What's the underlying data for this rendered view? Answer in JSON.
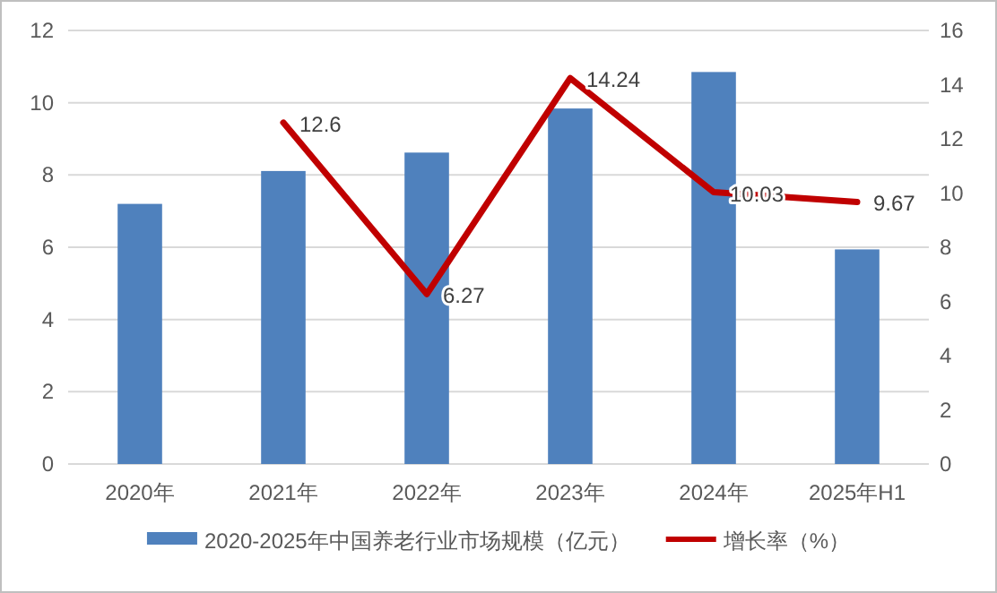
{
  "chart_data": {
    "type": "bar",
    "categories": [
      "2020年",
      "2021年",
      "2022年",
      "2023年",
      "2024年",
      "2025年H1"
    ],
    "series": [
      {
        "name": "2020-2025年中国养老行业市场规模（亿元）",
        "color": "#4f81bd",
        "values": [
          7.2,
          8.11,
          8.62,
          9.84,
          10.85,
          5.94
        ]
      },
      {
        "name": "增长率（%）",
        "type": "line",
        "axis": "y2",
        "color": "#c00000",
        "values": [
          null,
          12.6,
          6.27,
          14.24,
          10.03,
          9.67
        ],
        "value_labels": [
          null,
          "12.6",
          "6.27",
          "14.24",
          "10.03",
          "9.67"
        ]
      }
    ],
    "ylim": [
      0,
      12
    ],
    "yticks": [
      0,
      2,
      4,
      6,
      8,
      10,
      12
    ],
    "y2lim": [
      0,
      16
    ],
    "y2ticks": [
      0,
      2,
      4,
      6,
      8,
      10,
      12,
      14,
      16
    ],
    "grid": "y",
    "legend": "bottom",
    "marker": "none",
    "line_style": "solid"
  }
}
